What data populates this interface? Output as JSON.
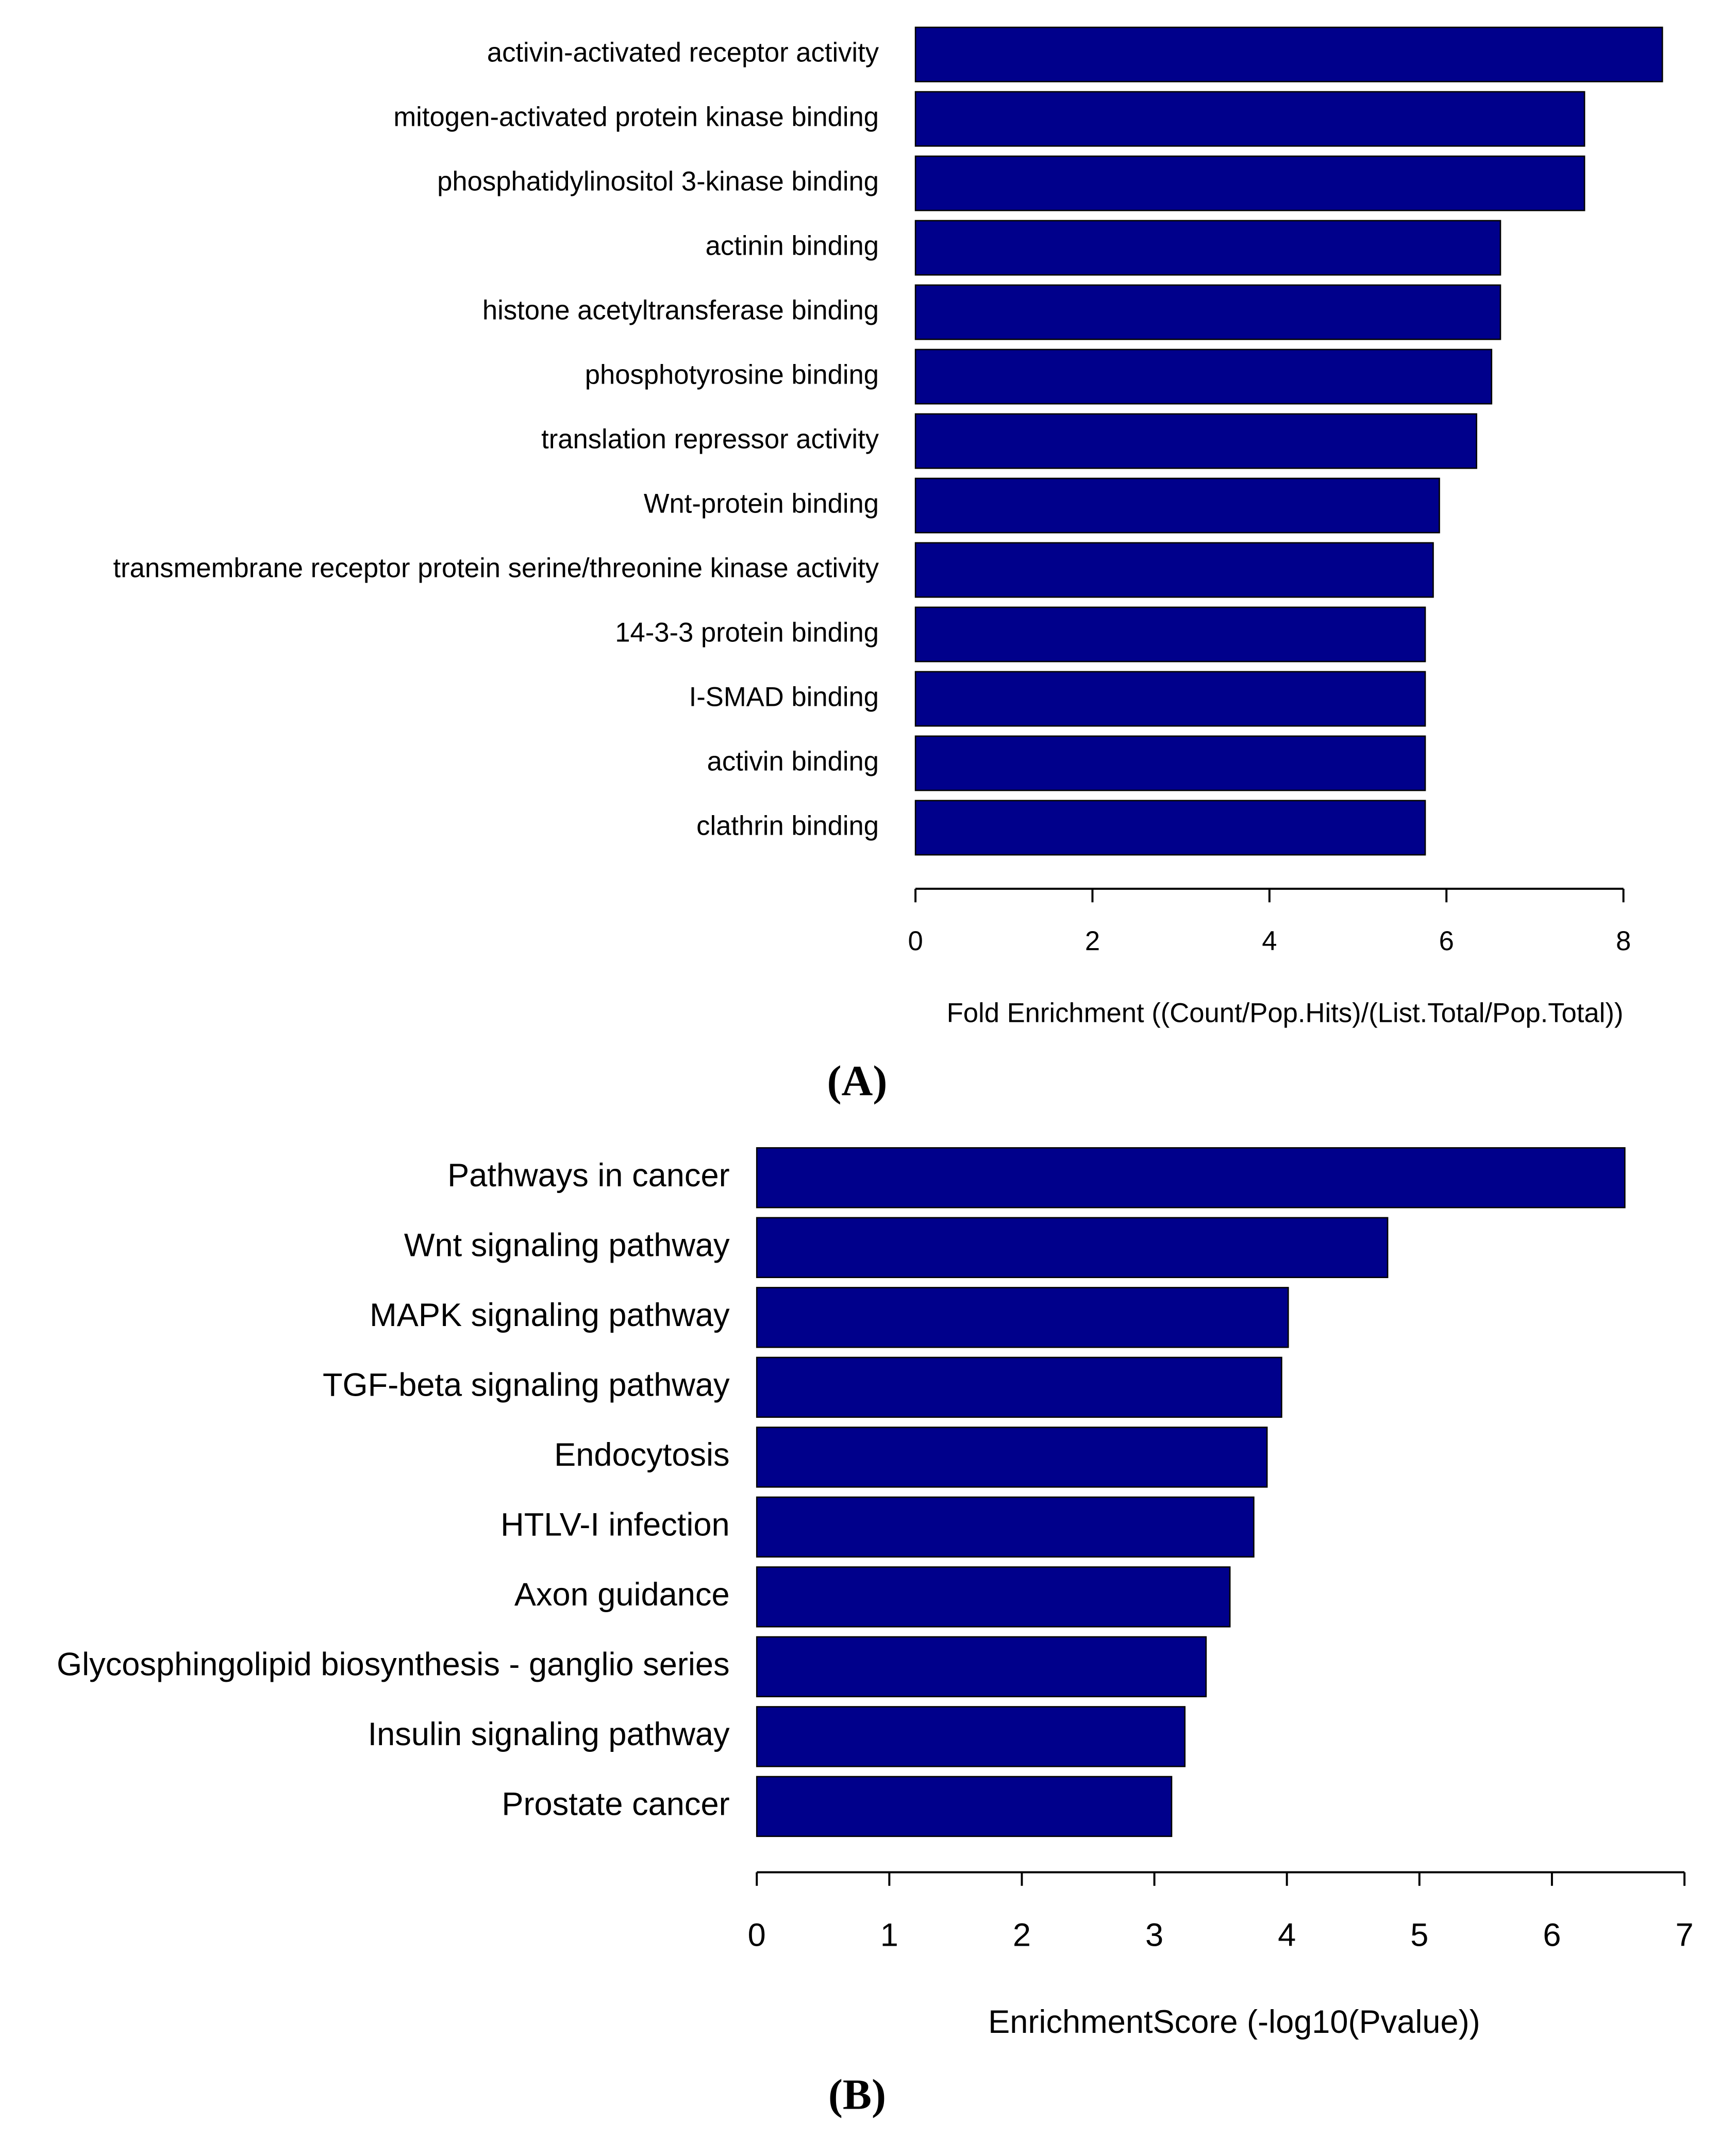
{
  "chart_data": [
    {
      "type": "bar",
      "orientation": "horizontal",
      "panel_label": "(A)",
      "x_label": "Fold Enrichment ((Count/Pop.Hits)/(List.Total/Pop.Total))",
      "categories": [
        "activin-activated receptor activity",
        "mitogen-activated protein kinase binding",
        "phosphatidylinositol 3-kinase binding",
        "actinin binding",
        "histone acetyltransferase binding",
        "phosphotyrosine binding",
        "translation repressor activity",
        "Wnt-protein binding",
        "transmembrane receptor protein serine/threonine kinase activity",
        "14-3-3 protein binding",
        "I-SMAD binding",
        "activin binding",
        "clathrin binding"
      ],
      "values": [
        8.44,
        7.56,
        7.56,
        6.61,
        6.61,
        6.51,
        6.34,
        5.92,
        5.85,
        5.76,
        5.76,
        5.76,
        5.76
      ],
      "color": "#00008b",
      "xlim": [
        0,
        8
      ],
      "xticks": [
        0,
        2,
        4,
        6,
        8
      ]
    },
    {
      "type": "bar",
      "orientation": "horizontal",
      "panel_label": "(B)",
      "x_label": "EnrichmentScore (-log10(Pvalue))",
      "categories": [
        "Pathways in cancer",
        "Wnt signaling pathway",
        "MAPK signaling pathway",
        "TGF-beta signaling pathway",
        "Endocytosis",
        "HTLV-I infection",
        "Axon guidance",
        "Glycosphingolipid biosynthesis - ganglio series",
        "Insulin signaling pathway",
        "Prostate cancer"
      ],
      "values": [
        6.55,
        4.76,
        4.01,
        3.96,
        3.85,
        3.75,
        3.57,
        3.39,
        3.23,
        3.13
      ],
      "color": "#00008b",
      "xlim": [
        0,
        7
      ],
      "xticks": [
        0,
        1,
        2,
        3,
        4,
        5,
        6,
        7
      ]
    }
  ]
}
